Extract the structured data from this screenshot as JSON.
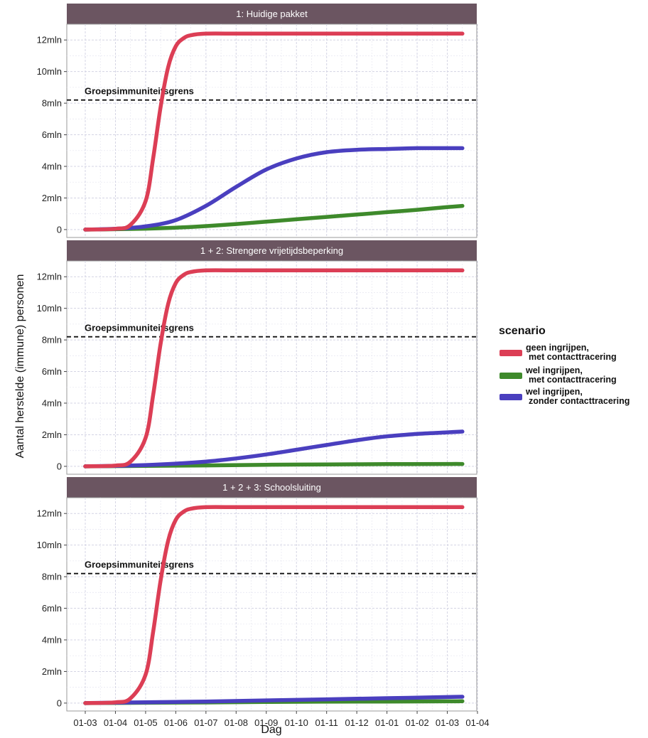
{
  "chart_data": {
    "type": "line",
    "xlabel": "Dag",
    "ylabel": "Aantal herstelde (immune) personen",
    "x_ticks": [
      "01-03",
      "01-04",
      "01-05",
      "01-06",
      "01-07",
      "01-08",
      "01-09",
      "01-10",
      "01-11",
      "01-12",
      "01-01",
      "01-02",
      "01-03",
      "01-04"
    ],
    "x_range_months": [
      0,
      13
    ],
    "y_ticks": [
      0,
      2,
      4,
      6,
      8,
      10,
      12
    ],
    "y_tick_labels": [
      "0",
      "2mln",
      "4mln",
      "6mln",
      "8mln",
      "10mln",
      "12mln"
    ],
    "y_unit": "mln",
    "ylim": [
      -0.5,
      13
    ],
    "grid": true,
    "legend": {
      "title": "scenario",
      "position": "right",
      "entries": [
        {
          "id": "geen",
          "lines": [
            "geen ingrijpen,",
            "met contacttracering"
          ],
          "color": "#dc3e55"
        },
        {
          "id": "wel_met",
          "lines": [
            "wel ingrijpen,",
            "met contacttracering"
          ],
          "color": "#3e8a2b"
        },
        {
          "id": "wel_zonder",
          "lines": [
            "wel ingrijpen,",
            "zonder contacttracering"
          ],
          "color": "#4a3fbf"
        }
      ]
    },
    "reference_line": {
      "y": 8.2,
      "label": "Groepsimmuniteitsgrens",
      "style": "dashed"
    },
    "panels": [
      {
        "title": "1: Huidige pakket",
        "series": [
          {
            "id": "geen",
            "x": [
              0,
              1,
              1.5,
              2,
              2.25,
              2.5,
              2.75,
              3,
              3.25,
              3.5,
              4,
              5,
              6,
              7,
              8,
              9,
              10,
              11,
              12.5
            ],
            "y": [
              0,
              0.05,
              0.3,
              1.8,
              4.5,
              7.8,
              10.3,
              11.6,
              12.1,
              12.3,
              12.4,
              12.4,
              12.4,
              12.4,
              12.4,
              12.4,
              12.4,
              12.4,
              12.4
            ]
          },
          {
            "id": "wel_met",
            "x": [
              0,
              1,
              2,
              3,
              4,
              5,
              6,
              7,
              8,
              9,
              10,
              11,
              12,
              12.5
            ],
            "y": [
              0,
              0.02,
              0.06,
              0.12,
              0.22,
              0.35,
              0.5,
              0.65,
              0.8,
              0.95,
              1.1,
              1.25,
              1.42,
              1.5
            ]
          },
          {
            "id": "wel_zonder",
            "x": [
              0,
              1,
              2,
              3,
              4,
              5,
              6,
              7,
              8,
              9,
              10,
              11,
              12,
              12.5
            ],
            "y": [
              0,
              0.05,
              0.2,
              0.6,
              1.5,
              2.7,
              3.8,
              4.5,
              4.9,
              5.05,
              5.1,
              5.15,
              5.15,
              5.15
            ]
          }
        ]
      },
      {
        "title": "1 + 2: Strengere vrijetijdsbeperking",
        "series": [
          {
            "id": "geen",
            "x": [
              0,
              1,
              1.5,
              2,
              2.25,
              2.5,
              2.75,
              3,
              3.25,
              3.5,
              4,
              5,
              6,
              7,
              8,
              9,
              10,
              11,
              12.5
            ],
            "y": [
              0,
              0.05,
              0.3,
              1.8,
              4.5,
              7.8,
              10.3,
              11.6,
              12.1,
              12.3,
              12.4,
              12.4,
              12.4,
              12.4,
              12.4,
              12.4,
              12.4,
              12.4,
              12.4
            ]
          },
          {
            "id": "wel_met",
            "x": [
              0,
              2,
              4,
              6,
              8,
              10,
              12,
              12.5
            ],
            "y": [
              0,
              0.03,
              0.06,
              0.1,
              0.12,
              0.14,
              0.15,
              0.15
            ]
          },
          {
            "id": "wel_zonder",
            "x": [
              0,
              1,
              2,
              3,
              4,
              5,
              6,
              7,
              8,
              9,
              10,
              11,
              12,
              12.5
            ],
            "y": [
              0,
              0.03,
              0.08,
              0.17,
              0.3,
              0.5,
              0.75,
              1.05,
              1.35,
              1.65,
              1.9,
              2.05,
              2.15,
              2.2
            ]
          }
        ]
      },
      {
        "title": "1 + 2 + 3: Schoolsluiting",
        "series": [
          {
            "id": "geen",
            "x": [
              0,
              1,
              1.5,
              2,
              2.25,
              2.5,
              2.75,
              3,
              3.25,
              3.5,
              4,
              5,
              6,
              7,
              8,
              9,
              10,
              11,
              12.5
            ],
            "y": [
              0,
              0.05,
              0.3,
              1.8,
              4.5,
              7.8,
              10.3,
              11.6,
              12.1,
              12.3,
              12.4,
              12.4,
              12.4,
              12.4,
              12.4,
              12.4,
              12.4,
              12.4,
              12.4
            ]
          },
          {
            "id": "wel_met",
            "x": [
              0,
              2,
              4,
              6,
              8,
              10,
              12,
              12.5
            ],
            "y": [
              0,
              0.02,
              0.04,
              0.07,
              0.09,
              0.1,
              0.11,
              0.12
            ]
          },
          {
            "id": "wel_zonder",
            "x": [
              0,
              2,
              4,
              6,
              8,
              10,
              12,
              12.5
            ],
            "y": [
              0,
              0.05,
              0.1,
              0.17,
              0.24,
              0.31,
              0.38,
              0.4
            ]
          }
        ]
      }
    ]
  }
}
